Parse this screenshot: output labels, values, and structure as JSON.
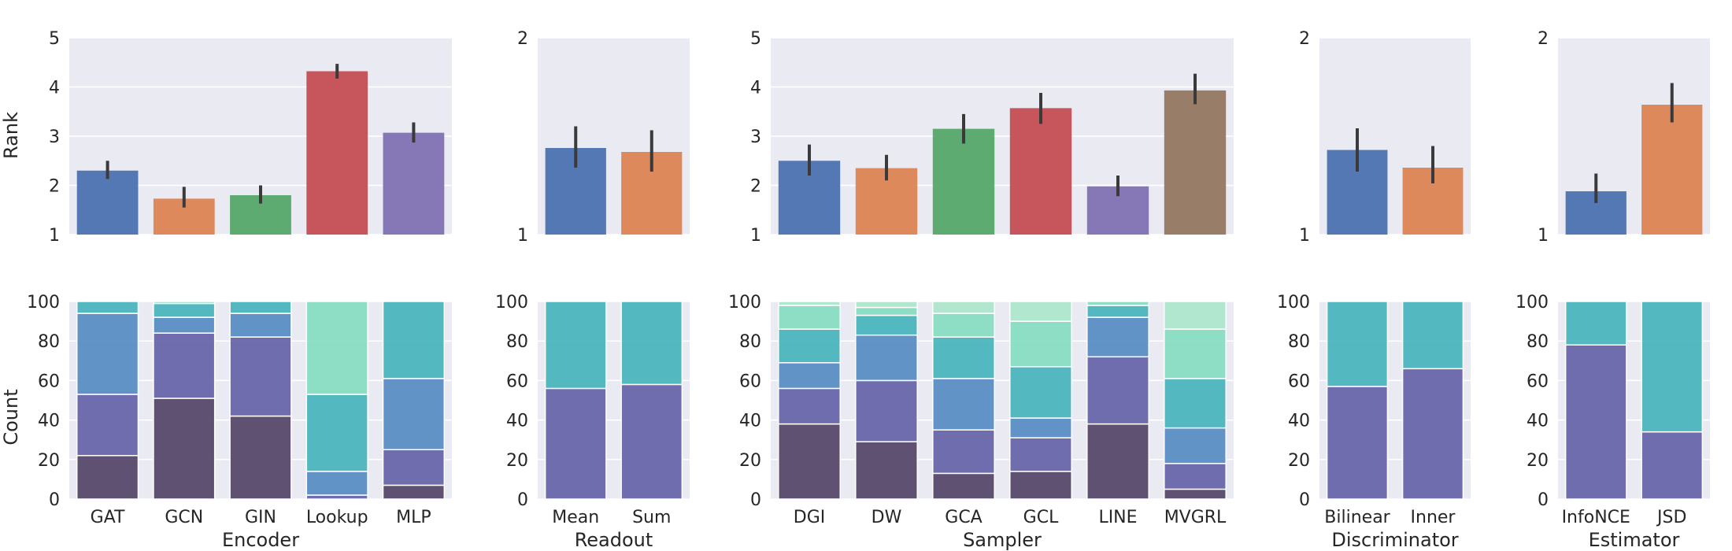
{
  "chart_data": {
    "type": "bar",
    "rank_label": "Rank",
    "count_label": "Count",
    "count_ylim": [
      0,
      100
    ],
    "count_yticks": [
      "0",
      "20",
      "40",
      "60",
      "80",
      "100"
    ],
    "palette": [
      "#4C72B0",
      "#DD8452",
      "#55A868",
      "#C44E52",
      "#8172B3",
      "#937860"
    ],
    "stack_colors": [
      "#4b3b5e",
      "#5e5ba4",
      "#4f86c0",
      "#3fb0b8",
      "#7fdcbe",
      "#a9e6c8"
    ],
    "panels": [
      {
        "name": "Encoder",
        "xlabel": "Encoder",
        "categories": [
          "GAT",
          "GCN",
          "GIN",
          "Lookup",
          "MLP"
        ],
        "rank": {
          "ylim": [
            1,
            5
          ],
          "yticks": [
            "1",
            "2",
            "3",
            "4",
            "5"
          ],
          "values": [
            2.3,
            1.73,
            1.8,
            4.32,
            3.07
          ],
          "err_low": [
            2.13,
            1.55,
            1.63,
            4.17,
            2.87
          ],
          "err_high": [
            2.5,
            1.97,
            2.0,
            4.47,
            3.28
          ]
        },
        "counts": [
          [
            22,
            31,
            41,
            6
          ],
          [
            51,
            33,
            8,
            7,
            1
          ],
          [
            42,
            40,
            12,
            6
          ],
          [
            0,
            2,
            12,
            39,
            47
          ],
          [
            7,
            18,
            36,
            39
          ]
        ]
      },
      {
        "name": "Readout",
        "xlabel": "Readout",
        "categories": [
          "Mean",
          "Sum"
        ],
        "rank": {
          "ylim": [
            1,
            2
          ],
          "yticks": [
            "1",
            "2"
          ],
          "values": [
            1.44,
            1.42
          ],
          "err_low": [
            1.34,
            1.32
          ],
          "err_high": [
            1.55,
            1.53
          ]
        },
        "counts": [
          [
            0,
            56,
            0,
            44
          ],
          [
            0,
            58,
            0,
            42
          ]
        ]
      },
      {
        "name": "Sampler",
        "xlabel": "Sampler",
        "categories": [
          "DGI",
          "DW",
          "GCA",
          "GCL",
          "LINE",
          "MVGRL"
        ],
        "rank": {
          "ylim": [
            1,
            5
          ],
          "yticks": [
            "1",
            "2",
            "3",
            "4",
            "5"
          ],
          "values": [
            2.5,
            2.35,
            3.15,
            3.57,
            1.98,
            3.93
          ],
          "err_low": [
            2.2,
            2.1,
            2.85,
            3.25,
            1.78,
            3.65
          ],
          "err_high": [
            2.83,
            2.62,
            3.45,
            3.88,
            2.2,
            4.27
          ]
        },
        "counts": [
          [
            38,
            18,
            13,
            17,
            12,
            2
          ],
          [
            29,
            31,
            23,
            10,
            4,
            3
          ],
          [
            13,
            22,
            26,
            21,
            12,
            6
          ],
          [
            14,
            17,
            10,
            26,
            23,
            10
          ],
          [
            38,
            34,
            20,
            6,
            2
          ],
          [
            5,
            13,
            18,
            25,
            25,
            14
          ]
        ]
      },
      {
        "name": "Discriminator",
        "xlabel": "Discriminator",
        "categories": [
          "Bilinear",
          "Inner"
        ],
        "rank": {
          "ylim": [
            1,
            2
          ],
          "yticks": [
            "1",
            "2"
          ],
          "values": [
            1.43,
            1.34
          ],
          "err_low": [
            1.32,
            1.26
          ],
          "err_high": [
            1.54,
            1.45
          ]
        },
        "counts": [
          [
            0,
            57,
            0,
            43
          ],
          [
            0,
            66,
            0,
            34
          ]
        ]
      },
      {
        "name": "Estimator",
        "xlabel": "Estimator",
        "categories": [
          "InfoNCE",
          "JSD"
        ],
        "rank": {
          "ylim": [
            1,
            2
          ],
          "yticks": [
            "1",
            "2"
          ],
          "values": [
            1.22,
            1.66
          ],
          "err_low": [
            1.16,
            1.57
          ],
          "err_high": [
            1.31,
            1.77
          ]
        },
        "counts": [
          [
            0,
            78,
            0,
            22
          ],
          [
            0,
            34,
            0,
            66
          ]
        ]
      }
    ]
  }
}
